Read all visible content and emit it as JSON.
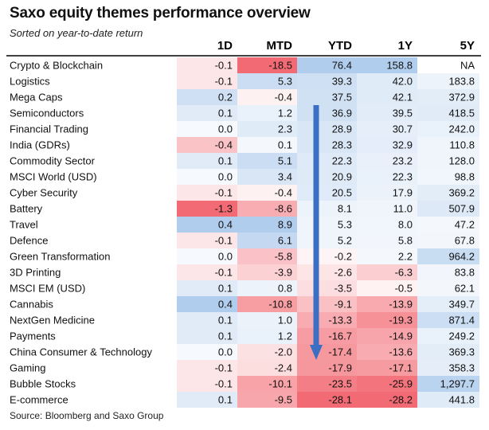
{
  "title": "Saxo equity themes performance overview",
  "subtitle": "Sorted on year-to-date return",
  "source": "Source: Bloomberg and Saxo Group",
  "chart_data": {
    "type": "table",
    "columns": [
      "1D",
      "MTD",
      "YTD",
      "1Y",
      "5Y"
    ],
    "rows": [
      {
        "name": "Crypto & Blockchain",
        "values": [
          "-0.1",
          "-18.5",
          "76.4",
          "158.8",
          "NA"
        ]
      },
      {
        "name": "Logistics",
        "values": [
          "-0.1",
          "5.3",
          "39.3",
          "42.0",
          "183.8"
        ]
      },
      {
        "name": "Mega Caps",
        "values": [
          "0.2",
          "-0.4",
          "37.5",
          "42.1",
          "372.9"
        ]
      },
      {
        "name": "Semiconductors",
        "values": [
          "0.1",
          "1.2",
          "36.9",
          "39.5",
          "418.5"
        ]
      },
      {
        "name": "Financial Trading",
        "values": [
          "0.0",
          "2.3",
          "28.9",
          "30.7",
          "242.0"
        ]
      },
      {
        "name": "India (GDRs)",
        "values": [
          "-0.4",
          "0.1",
          "28.3",
          "32.9",
          "110.8"
        ]
      },
      {
        "name": "Commodity Sector",
        "values": [
          "0.1",
          "5.1",
          "22.3",
          "23.2",
          "128.0"
        ]
      },
      {
        "name": "MSCI World (USD)",
        "values": [
          "0.0",
          "3.4",
          "20.9",
          "22.3",
          "98.8"
        ]
      },
      {
        "name": "Cyber Security",
        "values": [
          "-0.1",
          "-0.4",
          "20.5",
          "17.9",
          "369.2"
        ]
      },
      {
        "name": "Battery",
        "values": [
          "-1.3",
          "-8.6",
          "8.1",
          "11.0",
          "507.9"
        ]
      },
      {
        "name": "Travel",
        "values": [
          "0.4",
          "8.9",
          "5.3",
          "8.0",
          "47.2"
        ]
      },
      {
        "name": "Defence",
        "values": [
          "-0.1",
          "6.1",
          "5.2",
          "5.8",
          "67.8"
        ]
      },
      {
        "name": "Green Transformation",
        "values": [
          "0.0",
          "-5.8",
          "-0.2",
          "2.2",
          "964.2"
        ]
      },
      {
        "name": "3D Printing",
        "values": [
          "-0.1",
          "-3.9",
          "-2.6",
          "-6.3",
          "83.8"
        ]
      },
      {
        "name": "MSCI EM (USD)",
        "values": [
          "0.1",
          "0.8",
          "-3.5",
          "-0.5",
          "62.1"
        ]
      },
      {
        "name": "Cannabis",
        "values": [
          "0.4",
          "-10.8",
          "-9.1",
          "-13.9",
          "349.7"
        ]
      },
      {
        "name": "NextGen Medicine",
        "values": [
          "0.1",
          "1.0",
          "-13.3",
          "-19.3",
          "871.4"
        ]
      },
      {
        "name": "Payments",
        "values": [
          "0.1",
          "1.2",
          "-16.7",
          "-14.9",
          "249.2"
        ]
      },
      {
        "name": "China Consumer & Technology",
        "values": [
          "0.0",
          "-2.0",
          "-17.4",
          "-13.6",
          "369.3"
        ]
      },
      {
        "name": "Gaming",
        "values": [
          "-0.1",
          "-2.4",
          "-17.9",
          "-17.1",
          "358.3"
        ]
      },
      {
        "name": "Bubble Stocks",
        "values": [
          "-0.1",
          "-10.1",
          "-23.5",
          "-25.9",
          "1,297.7"
        ]
      },
      {
        "name": "E-commerce",
        "values": [
          "0.1",
          "-9.5",
          "-28.1",
          "-28.2",
          "441.8"
        ]
      }
    ],
    "colors": {
      "negative": "#f0505a",
      "positive": "#4a8ad4",
      "arrow": "#3a6fc4",
      "header_rule": "#000000"
    }
  }
}
